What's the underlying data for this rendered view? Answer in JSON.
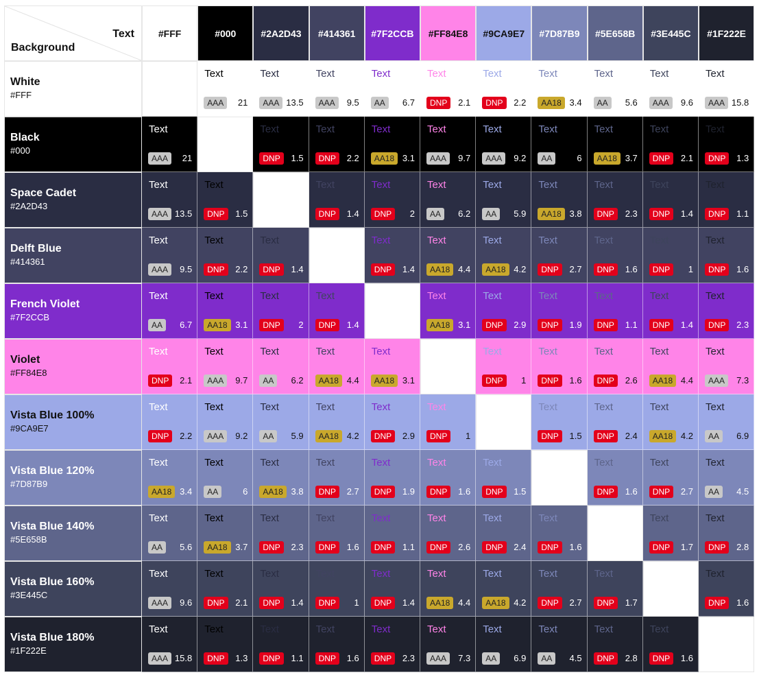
{
  "corner": {
    "text_label": "Text",
    "background_label": "Background"
  },
  "colors": [
    {
      "name": "White",
      "hex": "#FFF",
      "color": "#FFFFFF"
    },
    {
      "name": "Black",
      "hex": "#000",
      "color": "#000000"
    },
    {
      "name": "Space Cadet",
      "hex": "#2A2D43",
      "color": "#2A2D43"
    },
    {
      "name": "Delft Blue",
      "hex": "#414361",
      "color": "#414361"
    },
    {
      "name": "French Violet",
      "hex": "#7F2CCB",
      "color": "#7F2CCB"
    },
    {
      "name": "Violet",
      "hex": "#FF84E8",
      "color": "#FF84E8"
    },
    {
      "name": "Vista Blue 100%",
      "hex": "#9CA9E7",
      "color": "#9CA9E7"
    },
    {
      "name": "Vista Blue 120%",
      "hex": "#7D87B9",
      "color": "#7D87B9"
    },
    {
      "name": "Vista Blue 140%",
      "hex": "#5E658B",
      "color": "#5E658B"
    },
    {
      "name": "Vista Blue 160%",
      "hex": "#3E445C",
      "color": "#3E445C"
    },
    {
      "name": "Vista Blue 180%",
      "hex": "#1F222E",
      "color": "#1F222E"
    }
  ],
  "sample_text": "Text",
  "cells": [
    [
      null,
      [
        "AAA",
        "21"
      ],
      [
        "AAA",
        "13.5"
      ],
      [
        "AAA",
        "9.5"
      ],
      [
        "AA",
        "6.7"
      ],
      [
        "DNP",
        "2.1"
      ],
      [
        "DNP",
        "2.2"
      ],
      [
        "AA18",
        "3.4"
      ],
      [
        "AA",
        "5.6"
      ],
      [
        "AAA",
        "9.6"
      ],
      [
        "AAA",
        "15.8"
      ]
    ],
    [
      [
        "AAA",
        "21"
      ],
      null,
      [
        "DNP",
        "1.5"
      ],
      [
        "DNP",
        "2.2"
      ],
      [
        "AA18",
        "3.1"
      ],
      [
        "AAA",
        "9.7"
      ],
      [
        "AAA",
        "9.2"
      ],
      [
        "AA",
        "6"
      ],
      [
        "AA18",
        "3.7"
      ],
      [
        "DNP",
        "2.1"
      ],
      [
        "DNP",
        "1.3"
      ]
    ],
    [
      [
        "AAA",
        "13.5"
      ],
      [
        "DNP",
        "1.5"
      ],
      null,
      [
        "DNP",
        "1.4"
      ],
      [
        "DNP",
        "2"
      ],
      [
        "AA",
        "6.2"
      ],
      [
        "AA",
        "5.9"
      ],
      [
        "AA18",
        "3.8"
      ],
      [
        "DNP",
        "2.3"
      ],
      [
        "DNP",
        "1.4"
      ],
      [
        "DNP",
        "1.1"
      ]
    ],
    [
      [
        "AAA",
        "9.5"
      ],
      [
        "DNP",
        "2.2"
      ],
      [
        "DNP",
        "1.4"
      ],
      null,
      [
        "DNP",
        "1.4"
      ],
      [
        "AA18",
        "4.4"
      ],
      [
        "AA18",
        "4.2"
      ],
      [
        "DNP",
        "2.7"
      ],
      [
        "DNP",
        "1.6"
      ],
      [
        "DNP",
        "1"
      ],
      [
        "DNP",
        "1.6"
      ]
    ],
    [
      [
        "AA",
        "6.7"
      ],
      [
        "AA18",
        "3.1"
      ],
      [
        "DNP",
        "2"
      ],
      [
        "DNP",
        "1.4"
      ],
      null,
      [
        "AA18",
        "3.1"
      ],
      [
        "DNP",
        "2.9"
      ],
      [
        "DNP",
        "1.9"
      ],
      [
        "DNP",
        "1.1"
      ],
      [
        "DNP",
        "1.4"
      ],
      [
        "DNP",
        "2.3"
      ]
    ],
    [
      [
        "DNP",
        "2.1"
      ],
      [
        "AAA",
        "9.7"
      ],
      [
        "AA",
        "6.2"
      ],
      [
        "AA18",
        "4.4"
      ],
      [
        "AA18",
        "3.1"
      ],
      null,
      [
        "DNP",
        "1"
      ],
      [
        "DNP",
        "1.6"
      ],
      [
        "DNP",
        "2.6"
      ],
      [
        "AA18",
        "4.4"
      ],
      [
        "AAA",
        "7.3"
      ]
    ],
    [
      [
        "DNP",
        "2.2"
      ],
      [
        "AAA",
        "9.2"
      ],
      [
        "AA",
        "5.9"
      ],
      [
        "AA18",
        "4.2"
      ],
      [
        "DNP",
        "2.9"
      ],
      [
        "DNP",
        "1"
      ],
      null,
      [
        "DNP",
        "1.5"
      ],
      [
        "DNP",
        "2.4"
      ],
      [
        "AA18",
        "4.2"
      ],
      [
        "AA",
        "6.9"
      ]
    ],
    [
      [
        "AA18",
        "3.4"
      ],
      [
        "AA",
        "6"
      ],
      [
        "AA18",
        "3.8"
      ],
      [
        "DNP",
        "2.7"
      ],
      [
        "DNP",
        "1.9"
      ],
      [
        "DNP",
        "1.6"
      ],
      [
        "DNP",
        "1.5"
      ],
      null,
      [
        "DNP",
        "1.6"
      ],
      [
        "DNP",
        "2.7"
      ],
      [
        "AA",
        "4.5"
      ]
    ],
    [
      [
        "AA",
        "5.6"
      ],
      [
        "AA18",
        "3.7"
      ],
      [
        "DNP",
        "2.3"
      ],
      [
        "DNP",
        "1.6"
      ],
      [
        "DNP",
        "1.1"
      ],
      [
        "DNP",
        "2.6"
      ],
      [
        "DNP",
        "2.4"
      ],
      [
        "DNP",
        "1.6"
      ],
      null,
      [
        "DNP",
        "1.7"
      ],
      [
        "DNP",
        "2.8"
      ]
    ],
    [
      [
        "AAA",
        "9.6"
      ],
      [
        "DNP",
        "2.1"
      ],
      [
        "DNP",
        "1.4"
      ],
      [
        "DNP",
        "1"
      ],
      [
        "DNP",
        "1.4"
      ],
      [
        "AA18",
        "4.4"
      ],
      [
        "AA18",
        "4.2"
      ],
      [
        "DNP",
        "2.7"
      ],
      [
        "DNP",
        "1.7"
      ],
      null,
      [
        "DNP",
        "1.6"
      ]
    ],
    [
      [
        "AAA",
        "15.8"
      ],
      [
        "DNP",
        "1.3"
      ],
      [
        "DNP",
        "1.1"
      ],
      [
        "DNP",
        "1.6"
      ],
      [
        "DNP",
        "2.3"
      ],
      [
        "AAA",
        "7.3"
      ],
      [
        "AA",
        "6.9"
      ],
      [
        "AA",
        "4.5"
      ],
      [
        "DNP",
        "2.8"
      ],
      [
        "DNP",
        "1.6"
      ],
      null
    ]
  ]
}
